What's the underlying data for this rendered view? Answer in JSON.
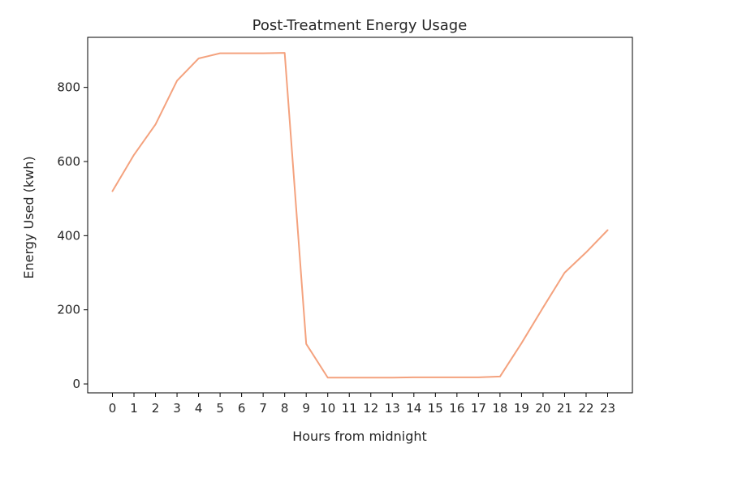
{
  "chart_data": {
    "type": "line",
    "title": "Post-Treatment Energy Usage",
    "xlabel": "Hours from midnight",
    "ylabel": "Energy Used (kwh)",
    "x": [
      0,
      1,
      2,
      3,
      4,
      5,
      6,
      7,
      8,
      9,
      10,
      11,
      12,
      13,
      14,
      15,
      16,
      17,
      18,
      19,
      20,
      21,
      22,
      23
    ],
    "xticks": [
      "0",
      "1",
      "2",
      "3",
      "4",
      "5",
      "6",
      "7",
      "8",
      "9",
      "10",
      "11",
      "12",
      "13",
      "14",
      "15",
      "16",
      "17",
      "18",
      "19",
      "20",
      "21",
      "22",
      "23"
    ],
    "xlim": [
      -1.15,
      24.15
    ],
    "yticks": [
      0,
      200,
      400,
      600,
      800
    ],
    "ytick_labels": [
      "0",
      "200",
      "400",
      "600",
      "800"
    ],
    "ylim": [
      -24,
      935
    ],
    "grid": false,
    "series": [
      {
        "color": "#f4a27e",
        "values": [
          520,
          618,
          700,
          818,
          878,
          892,
          892,
          892,
          893,
          108,
          17,
          17,
          17,
          17,
          18,
          18,
          18,
          18,
          20,
          110,
          206,
          300,
          355,
          415
        ]
      }
    ]
  }
}
